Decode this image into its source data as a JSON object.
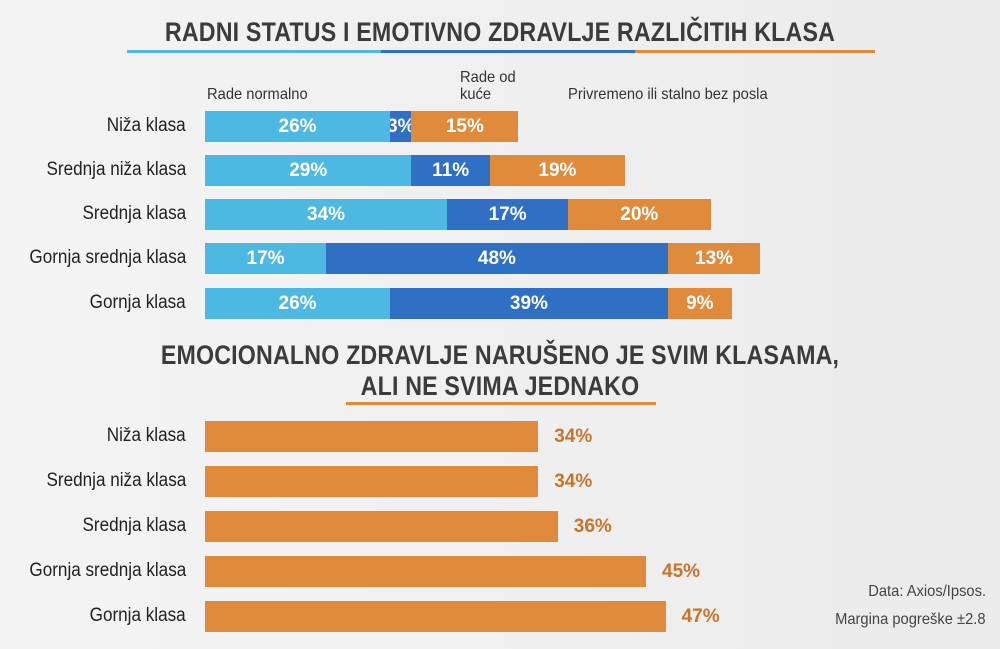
{
  "chart_data": [
    {
      "type": "bar",
      "orientation": "horizontal",
      "stacked": true,
      "title": "RADNI STATUS I EMOTIVNO ZDRAVLJE RAZLIČITIH KLASA",
      "categories": [
        "Niža klasa",
        "Srednja niža klasa",
        "Srednja klasa",
        "Gornja srednja klasa",
        "Gornja klasa"
      ],
      "series": [
        {
          "name": "Rade normalno",
          "color": "#4db8e2",
          "values": [
            26,
            29,
            34,
            17,
            26
          ],
          "labels": [
            "26%",
            "29%",
            "34%",
            "17%",
            "26%"
          ]
        },
        {
          "name": "Rade od kuće",
          "color": "#2f6fc4",
          "values": [
            3,
            11,
            17,
            48,
            39
          ],
          "labels": [
            "3%",
            "11%",
            "17%",
            "48%",
            "39%"
          ]
        },
        {
          "name": "Privremeno ili stalno bez posla",
          "color": "#e08a3c",
          "values": [
            15,
            19,
            20,
            13,
            9
          ],
          "labels": [
            "15%",
            "19%",
            "20%",
            "13%",
            "9%"
          ]
        }
      ],
      "series_label_lines": [
        [
          "Rade normalno"
        ],
        [
          "Rade od",
          "kuće"
        ],
        [
          "Privremeno ili stalno bez posla"
        ]
      ]
    },
    {
      "type": "bar",
      "orientation": "horizontal",
      "title_lines": [
        "EMOCIONALNO ZDRAVLJE NARUŠENO JE SVIM KLASAMA,",
        "ALI NE SVIMA JEDNAKO"
      ],
      "categories": [
        "Niža klasa",
        "Srednja niža klasa",
        "Srednja klasa",
        "Gornja srednja klasa",
        "Gornja klasa"
      ],
      "values": [
        34,
        34,
        36,
        45,
        47
      ],
      "labels": [
        "34%",
        "34%",
        "36%",
        "45%",
        "47%"
      ],
      "color": "#e08a3c"
    }
  ],
  "source": [
    "Data: Axios/Ipsos.",
    "Margina pogreške ±2.8"
  ]
}
